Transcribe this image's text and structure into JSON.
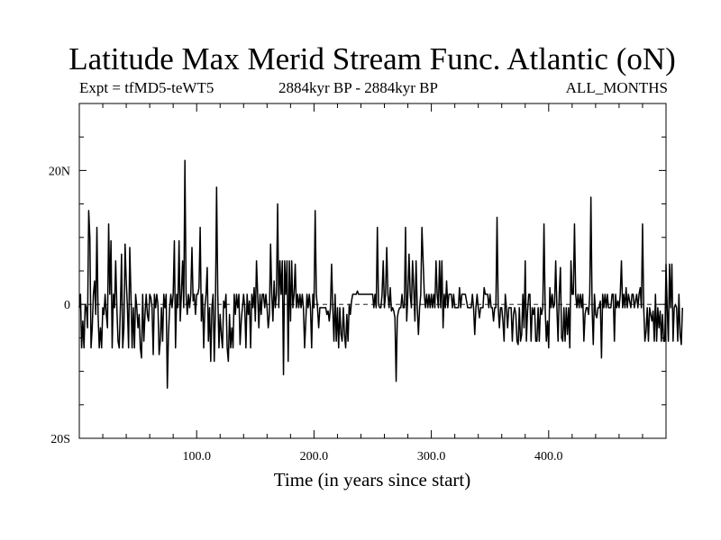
{
  "title": "Latitude Max Merid Stream Func. Atlantic (oN)",
  "subtitle_left": "Expt = tfMD5-teWT5",
  "subtitle_center": "2884kyr BP - 2884kyr BP",
  "subtitle_right": "ALL_MONTHS",
  "chart_data": {
    "type": "line",
    "xlabel": "Time (in years since start)",
    "ylabel": "",
    "xlim": [
      0,
      500
    ],
    "ylim": [
      -20,
      30
    ],
    "x_ticks": [
      100,
      200,
      300,
      400
    ],
    "x_tick_labels": [
      "100.0",
      "200.0",
      "300.0",
      "400.0"
    ],
    "y_ticks": [
      -20,
      0,
      20
    ],
    "y_tick_labels": [
      "20S",
      "0",
      "20N"
    ],
    "y_minor_ticks": [
      -15,
      -10,
      -5,
      5,
      10,
      15,
      25,
      30
    ],
    "reference_line": {
      "y": 0,
      "style": "dashed"
    },
    "grid": false,
    "x_start": 0,
    "x_step": 1,
    "values": [
      -0.5,
      1.5,
      -6.5,
      -2.5,
      -6.5,
      0,
      -0.5,
      -3.5,
      14,
      10,
      -6.5,
      -3.5,
      1.5,
      3.5,
      -1.5,
      11.5,
      -1.5,
      -6.5,
      -3.5,
      -6.5,
      -0.5,
      -1.5,
      1.5,
      -1.5,
      -3.5,
      12,
      1.5,
      9.5,
      -6.5,
      1.5,
      -0.5,
      6.5,
      -0.5,
      -5.5,
      -6.5,
      -0.5,
      7.5,
      -6.5,
      -3.5,
      9,
      3.5,
      -0.5,
      -6.5,
      8.5,
      1.5,
      -6.5,
      -0.5,
      -6.5,
      1.5,
      -0.5,
      -3.5,
      -1.5,
      -6.5,
      -8,
      1.5,
      -5.5,
      -1.5,
      1.5,
      -1.5,
      -2.5,
      1.5,
      1,
      -0.5,
      -7.5,
      1.5,
      -0.5,
      1.5,
      0,
      -7.5,
      -5.5,
      -0.5,
      -5.5,
      1.5,
      -0.5,
      1.5,
      -12.5,
      -4.5,
      -0.5,
      1.5,
      -0.5,
      1.5,
      9.5,
      -6.5,
      1.5,
      -0.5,
      9.5,
      -2.5,
      1.5,
      6.5,
      -0.5,
      21.5,
      1.5,
      -1.5,
      1.5,
      -0.5,
      1.5,
      8.5,
      0.5,
      1.5,
      -1.5,
      1.5,
      1.5,
      2.5,
      11.5,
      -2.5,
      1.5,
      -6.5,
      -0.5,
      1.5,
      5.5,
      -5.5,
      -0.5,
      -8.5,
      -0.5,
      1.5,
      -8.5,
      -0.5,
      17.5,
      1.5,
      -6.5,
      -1.5,
      -4.5,
      -6.5,
      0.5,
      -0.5,
      1.5,
      -6.5,
      -8.5,
      -1.5,
      -6.5,
      -3.5,
      -6.5,
      1.5,
      -1.5,
      1.5,
      -0.5,
      1.5,
      -6,
      -2.5,
      -0.5,
      1.5,
      -0.5,
      -6.5,
      1.5,
      -1.5,
      0.5,
      -6.5,
      1.5,
      -0.5,
      2.5,
      -2.5,
      6.5,
      1.5,
      -3.5,
      1.5,
      -1.5,
      1.5,
      1.5,
      -0.5,
      1.5,
      -0.5,
      -3.5,
      -1.5,
      9,
      1.5,
      -2.5,
      3.5,
      -0.5,
      1.5,
      15,
      -0.5,
      6.5,
      1.5,
      6.5,
      -10.5,
      6.5,
      1.5,
      6.5,
      -8.5,
      6.5,
      -2.5,
      6.5,
      -0.5,
      1.5,
      6,
      -0.5,
      1.5,
      -0.5,
      1.5,
      -0.5,
      1.5,
      -0.5,
      -6.5,
      -2.5,
      1.5,
      -0.5,
      1.5,
      -0.5,
      -6.5,
      1.5,
      -0.5,
      14,
      1.5,
      -0.5,
      -3.5,
      -0.5,
      -0.5,
      -0.5,
      -0.5,
      -0.5,
      -0.5,
      -1.5,
      -1,
      -2.5,
      -0.5,
      6,
      -0.5,
      -5.5,
      1.5,
      -5.5,
      -0.5,
      -6.5,
      -0.5,
      -4.5,
      -5.5,
      -0.5,
      -4.5,
      -6.5,
      -1.5,
      -5.5,
      0,
      -1.5,
      0.5,
      1.5,
      1.5,
      1.5,
      1.5,
      2,
      1.5,
      1.5,
      1.5,
      1.5,
      1.5,
      1.5,
      1.5,
      1.5,
      1.5,
      1.5,
      1.5,
      1.5,
      1.5,
      -0.5,
      1.5,
      -0.5,
      11.5,
      0,
      -0.5,
      -0.5,
      1.5,
      6.5,
      -0.5,
      1.5,
      8.5,
      1.5,
      -0.5,
      2.5,
      -1,
      -0.5,
      -1,
      -2,
      -11.5,
      -2,
      -1,
      -0.5,
      -0.5,
      1.5,
      -0.5,
      -0.5,
      11.5,
      -2.5,
      1.5,
      7.5,
      1.5,
      -0.5,
      6.5,
      2.5,
      -2.5,
      6.5,
      -0.5,
      -4.5,
      -0.5,
      1.5,
      11.5,
      6.5,
      1.5,
      -0.5,
      1.5,
      -0.5,
      1.5,
      -0.5,
      1.5,
      -0.5,
      1.5,
      -0.5,
      6.5,
      1.5,
      -0.5,
      6.5,
      -0.5,
      6.5,
      -3.5,
      1.5,
      -0.5,
      3.5,
      -0.5,
      1.5,
      1.5,
      1.5,
      -0.5,
      1.5,
      -0.5,
      -0.5,
      -0.5,
      -0.5,
      2.5,
      -0.5,
      1.5,
      1.5,
      1.5,
      1.5,
      0.5,
      -0.5,
      -0.5,
      -0.5,
      -0.5,
      1.5,
      -0.5,
      -4.5,
      -0.5,
      1.5,
      -0.5,
      -2,
      -0.5,
      -0.5,
      -0.5,
      2.5,
      1.5,
      1.5,
      1.5,
      -0.5,
      1.5,
      -0.5,
      -0.5,
      -2.5,
      -0.5,
      -0.5,
      13,
      -0.5,
      -3.5,
      -0.5,
      -0.5,
      -2.5,
      -5.5,
      1.5,
      -0.5,
      -3.5,
      -0.5,
      -0.5,
      -0.5,
      -5.5,
      -1.5,
      -0.5,
      -1.5,
      -5.5,
      -6,
      -0.5,
      -5.5,
      -4.5,
      1.5,
      -3.5,
      6.5,
      -5.5,
      -1,
      1.5,
      1.5,
      -5.5,
      -0.5,
      -1.5,
      -0.5,
      -5.5,
      -5.5,
      -0.5,
      -5.5,
      -0.5,
      -1.5,
      -0.5,
      12,
      -0.5,
      -5.5,
      -2.5,
      -6.5,
      2.5,
      -0.5,
      1.5,
      -0.5,
      0,
      6.5,
      -0.5,
      -5.5,
      1.5,
      5.5,
      -5,
      -5.5,
      -0.5,
      -5.5,
      -0.5,
      -4.5,
      -0.5,
      -6.5,
      6.5,
      1.5,
      1.5,
      12,
      1.5,
      -0.5,
      1.5,
      -0.5,
      1.5,
      -0.5,
      1.5,
      -5.5,
      -1.5,
      -0.5,
      -0.5,
      -1.5,
      1.5,
      16,
      -0.5,
      -6,
      1.5,
      -1.5,
      -2,
      -0.5,
      -0.5,
      0.5,
      -8,
      1.5,
      -0.5,
      1.5,
      -0.5,
      1.5,
      -0.5,
      -0.5,
      -0.5,
      1.5,
      1.5,
      -5.5,
      1.5,
      -0.5,
      0.5,
      -0.5,
      1.5,
      6.5,
      -0.5,
      1.5,
      -0.5,
      2.5,
      -0.5,
      1.5,
      0.5,
      -0.5,
      1.5,
      1.5,
      -0.5,
      0.5,
      1.5,
      -0.5,
      1.5,
      2.5,
      -0.5,
      12,
      -0.5,
      -5.5,
      -4,
      -0.5,
      -5.5,
      -0.5,
      -1.5,
      -2.5,
      -1,
      -5.5,
      1.5,
      -5.5,
      -0.5,
      -3.5,
      -1,
      -5.5,
      -1.5,
      -5.5,
      -5.5,
      6,
      -0.5,
      -5.5,
      6,
      -0.5,
      6,
      -5.5,
      -0.5,
      0,
      -0.5,
      -5.5,
      1.5,
      -4.5,
      -6,
      -0.5
    ]
  }
}
